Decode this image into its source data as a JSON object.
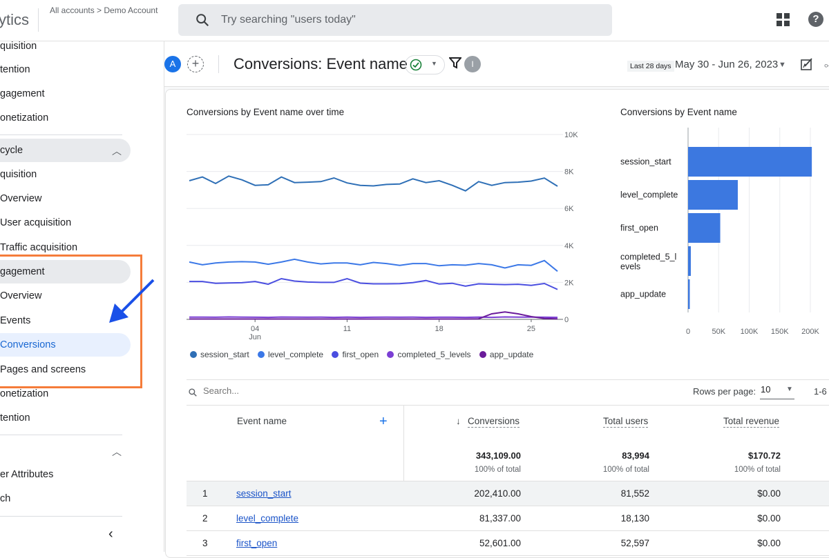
{
  "topbar": {
    "brand": "ytics",
    "breadcrumb": "All accounts > Demo Account",
    "search_placeholder": "Try searching \"users today\""
  },
  "sidebar": {
    "items": [
      {
        "label": "quisition"
      },
      {
        "label": "tention"
      },
      {
        "label": "gagement"
      },
      {
        "label": "onetization"
      },
      {
        "label": "cycle"
      },
      {
        "label": "quisition"
      },
      {
        "label": "Overview"
      },
      {
        "label": "User acquisition"
      },
      {
        "label": "Traffic acquisition"
      },
      {
        "label": "gagement"
      },
      {
        "label": "Overview"
      },
      {
        "label": "Events"
      },
      {
        "label": "Conversions"
      },
      {
        "label": "Pages and screens"
      },
      {
        "label": "onetization"
      },
      {
        "label": "tention"
      },
      {
        "label": "er Attributes"
      },
      {
        "label": "ch"
      }
    ]
  },
  "header": {
    "avatar_letter": "A",
    "title": "Conversions: Event name",
    "user_badge": "I",
    "date_label": "Last 28 days",
    "date_range": "May 30 - Jun 26, 2023"
  },
  "line_chart_title": "Conversions by Event name over time",
  "bar_chart_title": "Conversions by Event name",
  "legend": [
    "session_start",
    "level_complete",
    "first_open",
    "completed_5_levels",
    "app_update"
  ],
  "colors": {
    "accent": "#1a73e8",
    "session_start": "#2e6fb6",
    "level_complete": "#3b78e7",
    "first_open": "#4a4ee0",
    "completed_5_levels": "#7b3fd4",
    "app_update": "#6a1b9a",
    "bar": "#3c78e0",
    "highlight": "#f57c3a",
    "arrow": "#1a50e8"
  },
  "chart_data": [
    {
      "type": "line",
      "x_ticks": [
        "04",
        "11",
        "18",
        "25"
      ],
      "x_sublabel": "Jun",
      "y_ticks": [
        "10K",
        "8K",
        "6K",
        "4K",
        "2K",
        "0"
      ],
      "ylim": [
        0,
        10000
      ],
      "series": [
        {
          "name": "session_start",
          "values": [
            7500,
            7700,
            7350,
            7750,
            7550,
            7250,
            7280,
            7700,
            7400,
            7420,
            7450,
            7650,
            7380,
            7250,
            7220,
            7300,
            7320,
            7600,
            7400,
            7500,
            7250,
            6950,
            7450,
            7250,
            7400,
            7420,
            7480,
            7640,
            7200
          ]
        },
        {
          "name": "level_complete",
          "values": [
            3100,
            2950,
            3050,
            3100,
            3120,
            3100,
            2980,
            3100,
            3250,
            3100,
            3000,
            3050,
            3050,
            2950,
            3080,
            3020,
            2920,
            3020,
            3020,
            2900,
            2950,
            2930,
            3020,
            2950,
            2780,
            2950,
            2920,
            3180,
            2600
          ]
        },
        {
          "name": "first_open",
          "values": [
            2050,
            2050,
            1950,
            1970,
            1980,
            2050,
            1900,
            2200,
            2070,
            2020,
            2000,
            2000,
            2200,
            1960,
            1920,
            1920,
            1930,
            1990,
            2100,
            1910,
            1950,
            1800,
            1920,
            1900,
            1880,
            1900,
            1840,
            1940,
            1620
          ]
        },
        {
          "name": "completed_5_levels",
          "values": [
            120,
            120,
            115,
            130,
            120,
            115,
            110,
            125,
            120,
            115,
            120,
            110,
            120,
            110,
            115,
            120,
            115,
            120,
            110,
            115,
            115,
            110,
            120,
            110,
            130,
            120,
            120,
            115,
            110
          ]
        },
        {
          "name": "app_update",
          "values": [
            20,
            20,
            20,
            20,
            20,
            20,
            20,
            20,
            20,
            20,
            20,
            20,
            20,
            20,
            20,
            20,
            20,
            20,
            20,
            20,
            20,
            20,
            30,
            300,
            400,
            300,
            150,
            50,
            30
          ]
        }
      ]
    },
    {
      "type": "bar",
      "categories": [
        "session_start",
        "level_complete",
        "first_open",
        "completed_5_levels",
        "app_update"
      ],
      "values": [
        202410,
        81337,
        52601,
        4500,
        2261
      ],
      "x_ticks": [
        "0",
        "50K",
        "100K",
        "150K",
        "200K"
      ],
      "xlim": [
        0,
        200000
      ]
    }
  ],
  "table": {
    "search_placeholder": "Search...",
    "rows_per_page_label": "Rows per page:",
    "rows_per_page_value": "10",
    "pager": "1-6",
    "headers": {
      "event_name": "Event name",
      "conversions": "Conversions",
      "total_users": "Total users",
      "total_revenue": "Total revenue"
    },
    "sort_arrow": "↓",
    "totals": {
      "conversions": "343,109.00",
      "total_users": "83,994",
      "total_revenue": "$170.72",
      "pct_conversions": "100% of total",
      "pct_users": "100% of total",
      "pct_revenue": "100% of total"
    },
    "rows": [
      {
        "idx": "1",
        "event": "session_start",
        "conversions": "202,410.00",
        "users": "81,552",
        "revenue": "$0.00"
      },
      {
        "idx": "2",
        "event": "level_complete",
        "conversions": "81,337.00",
        "users": "18,130",
        "revenue": "$0.00"
      },
      {
        "idx": "3",
        "event": "first_open",
        "conversions": "52,601.00",
        "users": "52,597",
        "revenue": "$0.00"
      }
    ]
  }
}
